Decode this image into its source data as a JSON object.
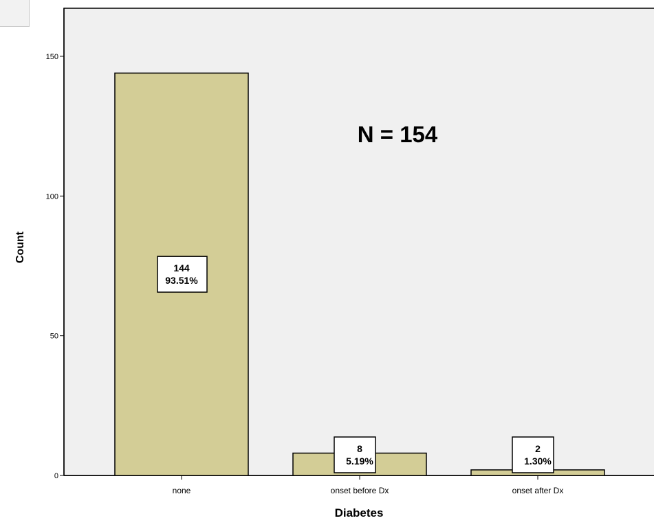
{
  "chart_data": {
    "type": "bar",
    "categories": [
      "none",
      "onset before Dx",
      "onset after Dx"
    ],
    "values": [
      144,
      8,
      2
    ],
    "percent_labels": [
      "93.51%",
      "5.19%",
      "1.30%"
    ],
    "count_labels": [
      "144",
      "8",
      "2"
    ],
    "xlabel": "Diabetes",
    "ylabel": "Count",
    "annotation": "N = 154",
    "ylim": [
      0,
      165
    ],
    "yticks": [
      0,
      50,
      100,
      150
    ],
    "grid": false,
    "legend": "none",
    "colors": {
      "bar_fill": "#d3cd96",
      "bar_stroke": "#000000",
      "plot_bg": "#f0f0f0",
      "label_box_fill": "#ffffff"
    }
  }
}
